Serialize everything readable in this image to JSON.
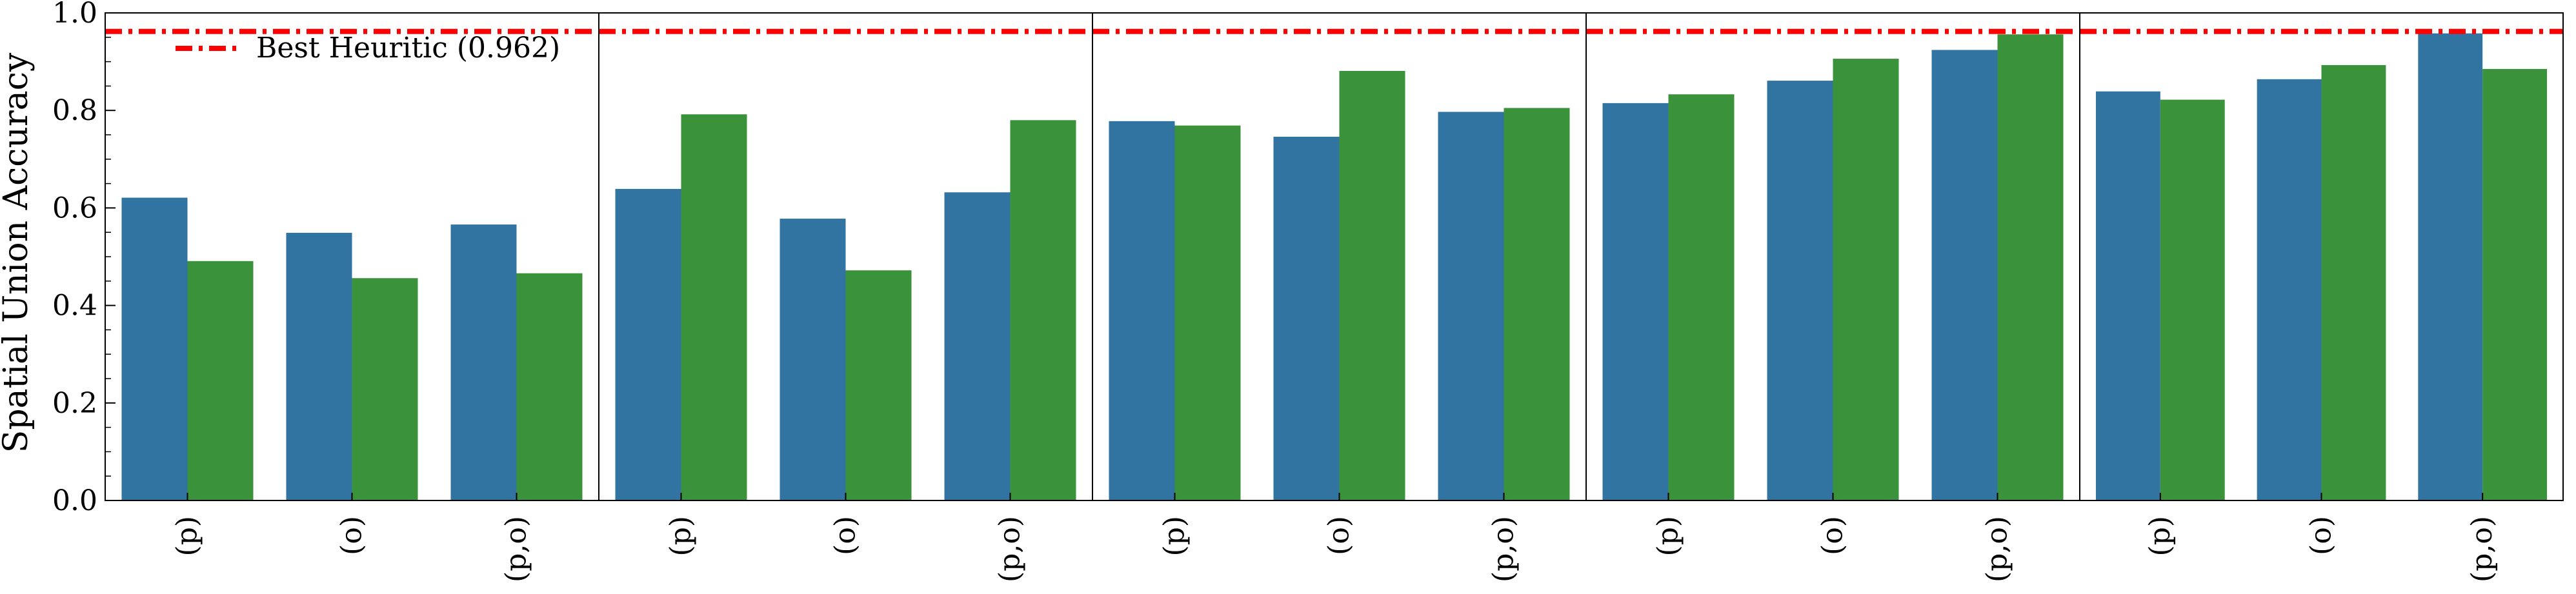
{
  "chart_data": {
    "type": "bar",
    "ylabel": "Spatial Union Accuracy",
    "ylim": [
      0,
      1.0
    ],
    "yticks": [
      "0.0",
      "0.2",
      "0.4",
      "0.6",
      "0.8",
      "1.0"
    ],
    "grid": false,
    "legend": {
      "position": "top-left",
      "label": "Best Heuritic (0.962)"
    },
    "reference_line": {
      "value": 0.962,
      "color": "#ff0000",
      "style": "dash-dot"
    },
    "colors": {
      "blue": "#3274a1",
      "green": "#3a923a"
    },
    "panels": [
      {
        "categories": [
          "(p)",
          "(o)",
          "(p,o)"
        ],
        "series": [
          {
            "values": [
              0.621,
              0.549,
              0.566
            ],
            "color": "#3274a1"
          },
          {
            "values": [
              0.491,
              0.456,
              0.466
            ],
            "color": "#3a923a"
          }
        ]
      },
      {
        "categories": [
          "(p)",
          "(o)",
          "(p,o)"
        ],
        "series": [
          {
            "values": [
              0.639,
              0.578,
              0.632
            ],
            "color": "#3274a1"
          },
          {
            "values": [
              0.792,
              0.472,
              0.78
            ],
            "color": "#3a923a"
          }
        ]
      },
      {
        "categories": [
          "(p)",
          "(o)",
          "(p,o)"
        ],
        "series": [
          {
            "values": [
              0.778,
              0.746,
              0.797
            ],
            "color": "#3274a1"
          },
          {
            "values": [
              0.769,
              0.881,
              0.805
            ],
            "color": "#3a923a"
          }
        ]
      },
      {
        "categories": [
          "(p)",
          "(o)",
          "(p,o)"
        ],
        "series": [
          {
            "values": [
              0.815,
              0.861,
              0.924
            ],
            "color": "#3274a1"
          },
          {
            "values": [
              0.833,
              0.906,
              0.956
            ],
            "color": "#3a923a"
          }
        ]
      },
      {
        "categories": [
          "(p)",
          "(o)",
          "(p,o)"
        ],
        "series": [
          {
            "values": [
              0.839,
              0.864,
              0.958
            ],
            "color": "#3274a1"
          },
          {
            "values": [
              0.822,
              0.893,
              0.885
            ],
            "color": "#3a923a"
          }
        ]
      }
    ]
  }
}
